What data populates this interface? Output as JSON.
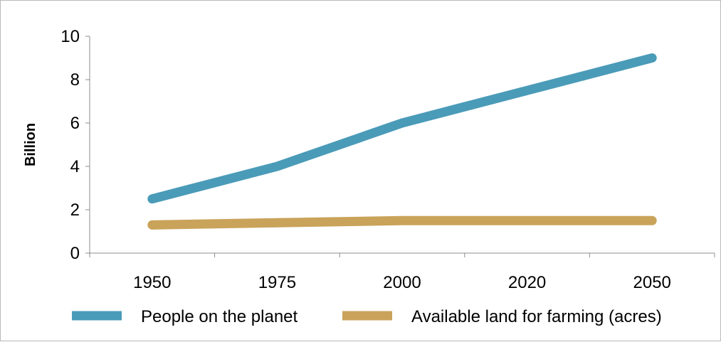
{
  "chart_data": {
    "type": "line",
    "categories": [
      "1950",
      "1975",
      "2000",
      "2020",
      "2050"
    ],
    "series": [
      {
        "name": "People on the planet",
        "values": [
          2.5,
          4.0,
          6.0,
          7.5,
          9.0
        ],
        "color": "#4a9bb8"
      },
      {
        "name": "Available land for farming (acres)",
        "values": [
          1.3,
          1.4,
          1.5,
          1.5,
          1.5
        ],
        "color": "#c9a35a"
      }
    ],
    "title": "",
    "xlabel": "",
    "ylabel": "Billion",
    "ylim": [
      0,
      10
    ],
    "yticks": [
      0,
      2,
      4,
      6,
      8,
      10
    ],
    "grid": false,
    "legend": "bottom"
  }
}
